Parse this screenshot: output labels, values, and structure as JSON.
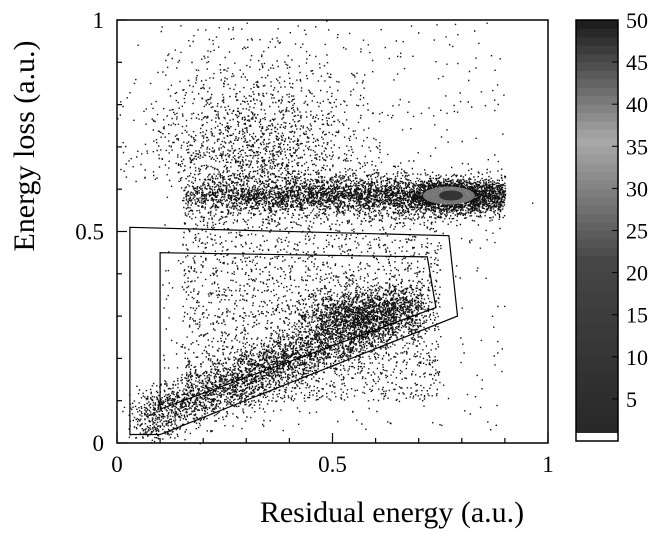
{
  "chart_data": {
    "type": "heatmap",
    "title": "",
    "xlabel": "Residual energy (a.u.)",
    "ylabel": "Energy loss (a.u.)",
    "xlim": [
      0,
      1
    ],
    "ylim": [
      0,
      1
    ],
    "x_ticks": [
      {
        "value": 0,
        "label": "0"
      },
      {
        "value": 0.5,
        "label": "0.5"
      },
      {
        "value": 1,
        "label": "1"
      }
    ],
    "y_ticks": [
      {
        "value": 0,
        "label": "0"
      },
      {
        "value": 0.5,
        "label": "0.5"
      },
      {
        "value": 1,
        "label": "1"
      }
    ],
    "grid": false,
    "colorbar": {
      "range": [
        0,
        50
      ],
      "tick_labels": [
        "5",
        "10",
        "15",
        "20",
        "25",
        "30",
        "35",
        "40",
        "45",
        "50"
      ]
    },
    "density_features": [
      {
        "shape": "horizontal band",
        "x_range": [
          0.15,
          0.9
        ],
        "y_center": 0.585,
        "peak": [
          0.77,
          0.585
        ],
        "peak_count": 50
      },
      {
        "shape": "diagonal band",
        "from": [
          0.05,
          0.05
        ],
        "to": [
          0.7,
          0.33
        ]
      },
      {
        "shape": "diffuse cloud",
        "x_range": [
          0.1,
          0.8
        ],
        "y_range": [
          0.05,
          1.0
        ]
      }
    ],
    "gates": [
      {
        "polygon": [
          [
            0.03,
            0.51
          ],
          [
            0.77,
            0.49
          ],
          [
            0.79,
            0.3
          ],
          [
            0.1,
            0.02
          ],
          [
            0.03,
            0.02
          ]
        ]
      },
      {
        "polygon": [
          [
            0.1,
            0.45
          ],
          [
            0.72,
            0.44
          ],
          [
            0.74,
            0.32
          ],
          [
            0.1,
            0.08
          ]
        ]
      }
    ]
  }
}
